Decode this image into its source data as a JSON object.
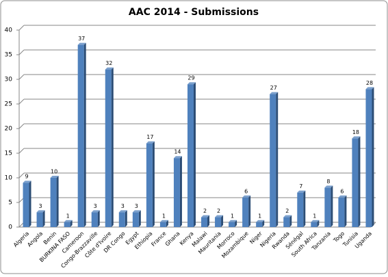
{
  "chart_data": {
    "type": "bar",
    "title": "AAC 2014 - Submissions",
    "categories": [
      "Algeria",
      "Angola",
      "Benin",
      "BURKINA FASO",
      "Cameroon",
      "Congo-Brazzaville",
      "Côte d'Ivoire",
      "DR Congo",
      "Egypt",
      "Ethiopia",
      "France",
      "Ghana",
      "Kenya",
      "Malawi",
      "Mauritania",
      "Morroco",
      "Mozambique",
      "Niger",
      "Nigeria",
      "Rwanda",
      "Sénégal",
      "South Africa",
      "Tanzania",
      "Togo",
      "Tunisia",
      "Uganda"
    ],
    "values": [
      9,
      3,
      10,
      1,
      37,
      3,
      32,
      3,
      3,
      17,
      1,
      14,
      29,
      2,
      2,
      1,
      6,
      1,
      27,
      2,
      7,
      1,
      8,
      6,
      18,
      28
    ],
    "color": "#4f81bd",
    "ylim": [
      0,
      40
    ],
    "yticks": [
      0,
      5,
      10,
      15,
      20,
      25,
      30,
      35,
      40
    ],
    "grid": true
  }
}
